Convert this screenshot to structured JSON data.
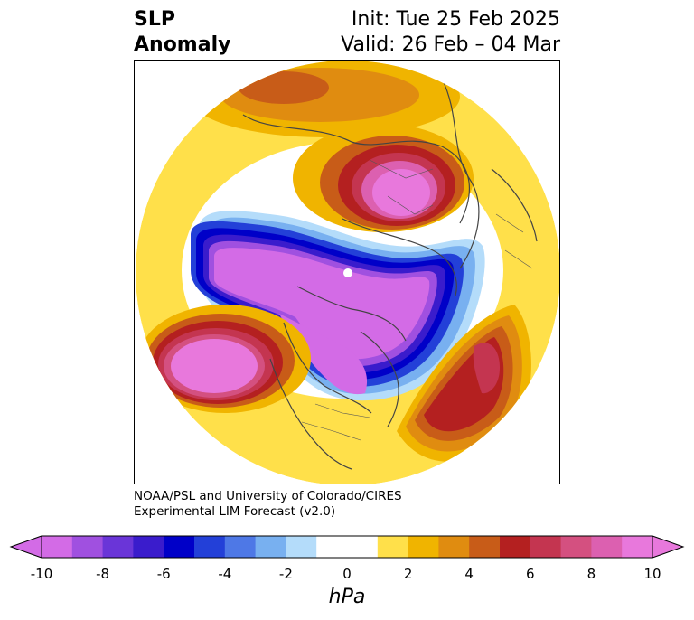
{
  "title": {
    "left_line1": "SLP",
    "left_line2": "Anomaly",
    "right_line1": "Init: Tue 25 Feb 2025",
    "right_line2": "Valid: 26 Feb – 04 Mar"
  },
  "credit": {
    "line1": "NOAA/PSL and University of Colorado/CIRES",
    "line2": "Experimental LIM Forecast (v2.0)"
  },
  "colorbar": {
    "unit": "hPa",
    "tick_labels": [
      "-10",
      "-8",
      "-6",
      "-4",
      "-2",
      "0",
      "2",
      "4",
      "6",
      "8",
      "10"
    ],
    "colors": [
      "#d36be6",
      "#a050e0",
      "#6a35d8",
      "#3a1ccc",
      "#0000c8",
      "#2340d8",
      "#4e78e6",
      "#78b0f0",
      "#b4dcfa",
      "#ffffff",
      "#ffffff",
      "#ffe04a",
      "#f0b400",
      "#e08c10",
      "#c85c18",
      "#b42020",
      "#c43550",
      "#d45080",
      "#dc60b0",
      "#e878dc"
    ],
    "min_arrow_color": "#d36be6",
    "max_arrow_color": "#e878dc"
  }
}
